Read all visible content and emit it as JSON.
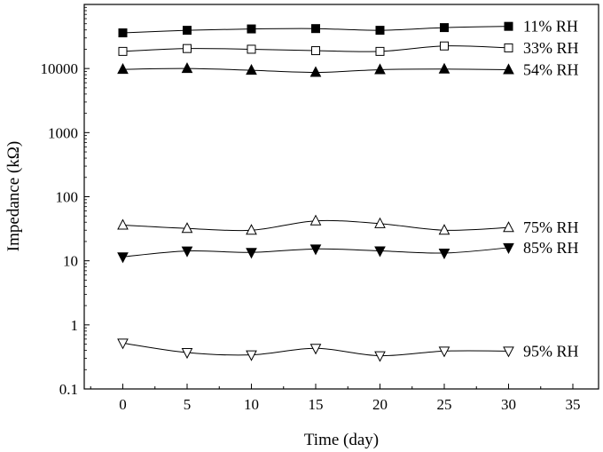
{
  "chart_data": {
    "type": "line",
    "title": "",
    "xlabel": "Time (day)",
    "ylabel": "Impedance (kΩ)",
    "xlim": [
      -3,
      37
    ],
    "ylim": [
      0.1,
      100000
    ],
    "y_scale": "log",
    "grid": false,
    "legend": "inline labels at right end of each series",
    "x_ticks": [
      0,
      5,
      10,
      15,
      20,
      25,
      30,
      35
    ],
    "x_tick_labels": [
      "0",
      "5",
      "10",
      "15",
      "20",
      "25",
      "30",
      "35"
    ],
    "y_ticks": [
      0.1,
      1,
      10,
      100,
      1000,
      10000
    ],
    "y_tick_labels": [
      "0.1",
      "1",
      "10",
      "100",
      "1000",
      "10000"
    ],
    "x": [
      0,
      5,
      10,
      15,
      20,
      25,
      30
    ],
    "series": [
      {
        "name": "11% RH",
        "marker": "filled-square",
        "values": [
          36000,
          39500,
          41500,
          42000,
          39500,
          43500,
          45500
        ]
      },
      {
        "name": "33% RH",
        "marker": "open-square",
        "values": [
          18500,
          20500,
          20000,
          19000,
          18500,
          22500,
          21000
        ]
      },
      {
        "name": "54% RH",
        "marker": "filled-triangle-up",
        "values": [
          9700,
          10000,
          9400,
          8700,
          9600,
          9800,
          9600
        ]
      },
      {
        "name": "75% RH",
        "marker": "open-triangle-up",
        "values": [
          36,
          32,
          30,
          42,
          38,
          30,
          33
        ]
      },
      {
        "name": "85% RH",
        "marker": "filled-triangle-down",
        "values": [
          11.5,
          14.2,
          13.5,
          15.3,
          14.3,
          13.2,
          16
        ]
      },
      {
        "name": "95% RH",
        "marker": "open-triangle-down",
        "values": [
          0.52,
          0.37,
          0.34,
          0.43,
          0.33,
          0.39,
          0.39
        ]
      }
    ],
    "colors": {
      "line": "#000000",
      "background": "#ffffff"
    }
  }
}
